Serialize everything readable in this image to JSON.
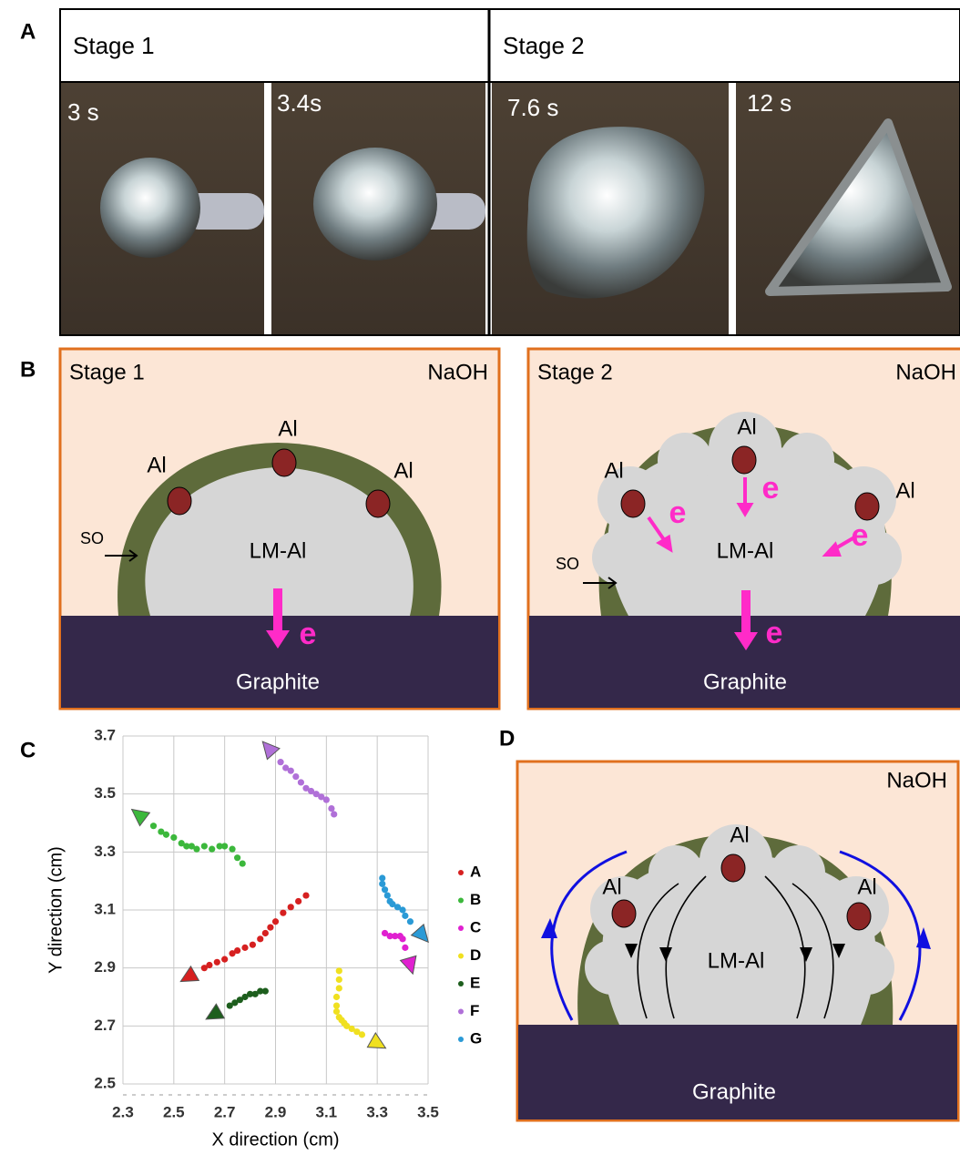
{
  "panel_labels": [
    "A",
    "B",
    "C",
    "D"
  ],
  "panel_a": {
    "stages": [
      "Stage 1",
      "Stage 2"
    ],
    "times": [
      "3 s",
      "3.4s",
      "7.6 s",
      "12 s"
    ]
  },
  "panel_b": [
    {
      "stage": "Stage 1",
      "medium": "NaOH",
      "al": [
        "Al",
        "Al",
        "Al"
      ],
      "so": "SO",
      "core": "LM-Al",
      "electrons": [
        "e"
      ],
      "substrate": "Graphite"
    },
    {
      "stage": "Stage 2",
      "medium": "NaOH",
      "al": [
        "Al",
        "Al",
        "Al"
      ],
      "so": "SO",
      "core": "LM-Al",
      "electrons": [
        "e",
        "e",
        "e",
        "e"
      ],
      "substrate": "Graphite"
    }
  ],
  "panel_d": {
    "medium": "NaOH",
    "al": [
      "Al",
      "Al",
      "Al"
    ],
    "core": "LM-Al",
    "substrate": "Graphite"
  },
  "chart_data": {
    "type": "scatter",
    "x_label": "X direction (cm)",
    "y_label": "Y direction (cm)",
    "xlim": [
      2.3,
      3.5
    ],
    "ylim": [
      2.5,
      3.7
    ],
    "xticks": [
      2.3,
      2.5,
      2.7,
      2.9,
      3.1,
      3.3,
      3.5
    ],
    "yticks": [
      2.5,
      2.7,
      2.9,
      3.1,
      3.3,
      3.5,
      3.7
    ],
    "grid": true,
    "series": [
      {
        "name": "A",
        "color": "#d62020",
        "x": [
          3.02,
          2.99,
          2.96,
          2.93,
          2.9,
          2.88,
          2.86,
          2.84,
          2.81,
          2.78,
          2.75,
          2.73,
          2.7,
          2.67,
          2.64,
          2.62
        ],
        "values": [
          3.15,
          3.13,
          3.11,
          3.09,
          3.06,
          3.04,
          3.02,
          3.0,
          2.98,
          2.97,
          2.96,
          2.95,
          2.93,
          2.92,
          2.91,
          2.9
        ]
      },
      {
        "name": "B",
        "color": "#3cb83c",
        "x": [
          2.77,
          2.75,
          2.73,
          2.7,
          2.68,
          2.65,
          2.62,
          2.59,
          2.57,
          2.55,
          2.53,
          2.5,
          2.47,
          2.45,
          2.42
        ],
        "values": [
          3.26,
          3.28,
          3.31,
          3.32,
          3.32,
          3.31,
          3.32,
          3.31,
          3.32,
          3.32,
          3.33,
          3.35,
          3.36,
          3.37,
          3.39
        ]
      },
      {
        "name": "C",
        "color": "#e020d0",
        "x": [
          3.33,
          3.35,
          3.37,
          3.39,
          3.4,
          3.41
        ],
        "values": [
          3.02,
          3.01,
          3.01,
          3.01,
          3.0,
          2.97
        ]
      },
      {
        "name": "D",
        "color": "#f0e020",
        "x": [
          3.15,
          3.15,
          3.15,
          3.14,
          3.14,
          3.14,
          3.15,
          3.16,
          3.17,
          3.18,
          3.2,
          3.22,
          3.24
        ],
        "values": [
          2.89,
          2.86,
          2.83,
          2.8,
          2.77,
          2.75,
          2.73,
          2.72,
          2.71,
          2.7,
          2.69,
          2.68,
          2.67
        ]
      },
      {
        "name": "E",
        "color": "#1d5e1d",
        "x": [
          2.86,
          2.84,
          2.82,
          2.8,
          2.78,
          2.76,
          2.74,
          2.72
        ],
        "values": [
          2.82,
          2.82,
          2.81,
          2.81,
          2.8,
          2.79,
          2.78,
          2.77
        ]
      },
      {
        "name": "F",
        "color": "#b070d8",
        "x": [
          3.13,
          3.12,
          3.1,
          3.08,
          3.06,
          3.04,
          3.02,
          3.0,
          2.98,
          2.96,
          2.94,
          2.92
        ],
        "values": [
          3.43,
          3.45,
          3.48,
          3.49,
          3.5,
          3.51,
          3.52,
          3.54,
          3.56,
          3.58,
          3.59,
          3.61
        ]
      },
      {
        "name": "G",
        "color": "#2a9ad6",
        "x": [
          3.32,
          3.32,
          3.33,
          3.34,
          3.35,
          3.36,
          3.38,
          3.4,
          3.41,
          3.43
        ],
        "values": [
          3.21,
          3.19,
          3.17,
          3.15,
          3.13,
          3.12,
          3.11,
          3.1,
          3.08,
          3.06
        ]
      }
    ]
  }
}
